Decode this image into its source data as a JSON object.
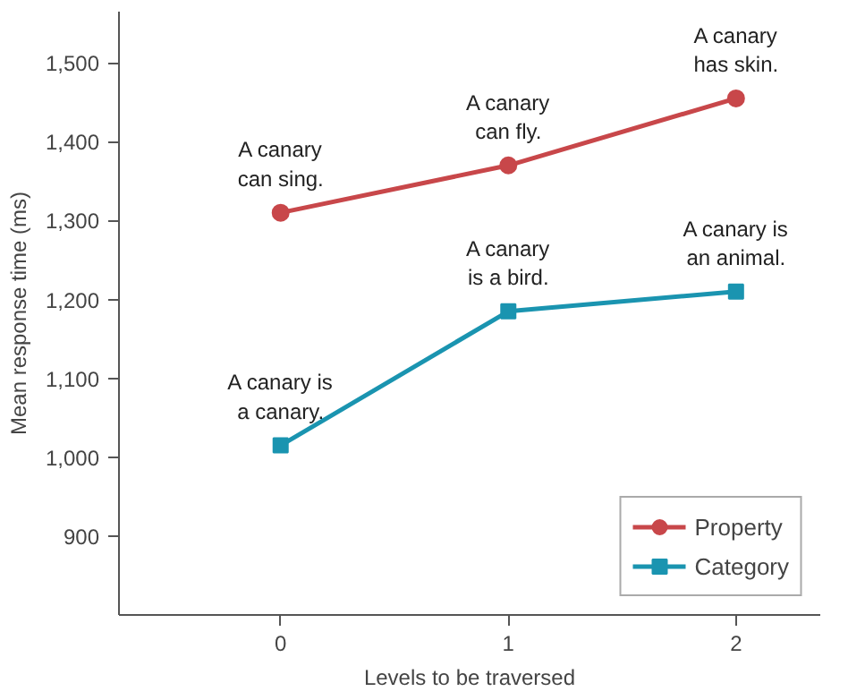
{
  "chart_data": {
    "type": "line",
    "xlabel": "Levels to be traversed",
    "ylabel": "Mean response time (ms)",
    "x": [
      0,
      1,
      2
    ],
    "xlim": [
      -0.71,
      2.37
    ],
    "xticks": [
      0,
      1,
      2
    ],
    "ylim": [
      800,
      1565
    ],
    "yticks": [
      {
        "value": 900,
        "label": "900"
      },
      {
        "value": 1000,
        "label": "1,000"
      },
      {
        "value": 1100,
        "label": "1,100"
      },
      {
        "value": 1200,
        "label": "1,200"
      },
      {
        "value": 1300,
        "label": "1,300"
      },
      {
        "value": 1400,
        "label": "1,400"
      },
      {
        "value": 1500,
        "label": "1,500"
      }
    ],
    "series": [
      {
        "name": "Property",
        "color": "#c8474a",
        "marker": "circle",
        "values": [
          1310,
          1370,
          1455
        ]
      },
      {
        "name": "Category",
        "color": "#1a94b0",
        "marker": "square",
        "values": [
          1015,
          1185,
          1210
        ]
      }
    ],
    "annotations": [
      {
        "text": "A canary\ncan sing.",
        "x": 0,
        "y": 1310
      },
      {
        "text": "A canary\ncan fly.",
        "x": 1,
        "y": 1370
      },
      {
        "text": "A canary\nhas skin.",
        "x": 2,
        "y": 1455
      },
      {
        "text": "A canary is\na canary.",
        "x": 0,
        "y": 1015
      },
      {
        "text": "A canary\nis a bird.",
        "x": 1,
        "y": 1185
      },
      {
        "text": "A canary is\nan animal.",
        "x": 2,
        "y": 1210
      }
    ],
    "grid": false,
    "legend": "bottom right",
    "line_style": "solid"
  }
}
